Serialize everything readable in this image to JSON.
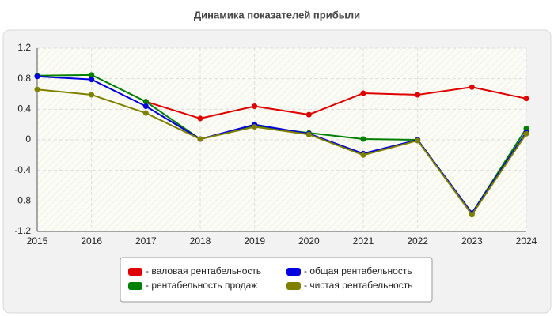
{
  "chart_data": {
    "type": "line",
    "title": "Динамика показателей прибыли",
    "categories": [
      "2015",
      "2016",
      "2017",
      "2018",
      "2019",
      "2020",
      "2021",
      "2022",
      "2023",
      "2024"
    ],
    "series": [
      {
        "name": "- валовая рентабельность",
        "color": "#e00000",
        "values": [
          null,
          null,
          0.5,
          0.28,
          0.44,
          0.33,
          0.61,
          0.59,
          0.69,
          0.54
        ]
      },
      {
        "name": "- общая рентабельность",
        "color": "#0000e0",
        "values": [
          0.83,
          0.79,
          0.44,
          0.01,
          0.2,
          0.08,
          -0.18,
          0.0,
          -0.96,
          0.1
        ]
      },
      {
        "name": "- рентабельность продаж",
        "color": "#008000",
        "values": [
          0.84,
          0.85,
          0.5,
          0.01,
          0.18,
          0.09,
          0.01,
          0.0,
          -0.96,
          0.15
        ]
      },
      {
        "name": "- чистая рентабельность",
        "color": "#808000",
        "values": [
          0.66,
          0.59,
          0.35,
          0.01,
          0.17,
          0.07,
          -0.2,
          -0.01,
          -0.98,
          0.08
        ]
      }
    ],
    "ylim": [
      -1.2,
      1.2
    ],
    "yticks": [
      1.2,
      0.8,
      0.4,
      0,
      -0.4,
      -0.8,
      -1.2
    ],
    "grid": true
  }
}
